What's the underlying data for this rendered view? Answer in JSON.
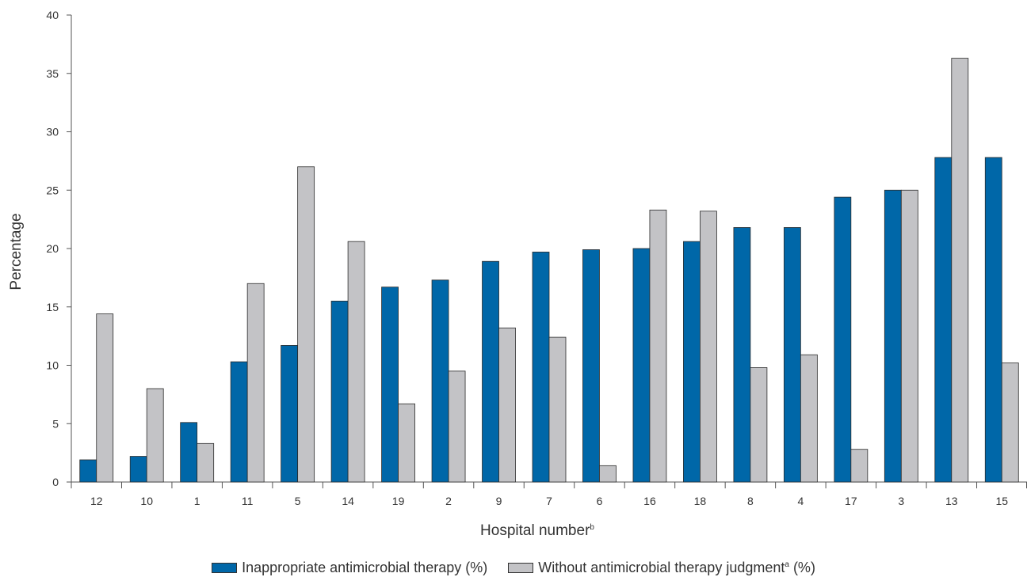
{
  "chart_data": {
    "type": "bar",
    "categories": [
      "12",
      "10",
      "1",
      "11",
      "5",
      "14",
      "19",
      "2",
      "9",
      "7",
      "6",
      "16",
      "18",
      "8",
      "4",
      "17",
      "3",
      "13",
      "15"
    ],
    "series": [
      {
        "name": "Inappropriate antimicrobial therapy (%)",
        "color": "#0067a8",
        "values": [
          1.9,
          2.2,
          5.1,
          10.3,
          11.7,
          15.5,
          16.7,
          17.3,
          18.9,
          19.7,
          19.9,
          20.0,
          20.6,
          21.8,
          21.8,
          24.4,
          25.0,
          27.8,
          27.8
        ]
      },
      {
        "name": "Without antimicrobial therapy judgment",
        "color": "#c3c3c6",
        "values": [
          14.4,
          8.0,
          3.3,
          17.0,
          27.0,
          20.6,
          6.7,
          9.5,
          13.2,
          12.4,
          1.4,
          23.3,
          23.2,
          9.8,
          10.9,
          2.8,
          25.0,
          36.3,
          10.2
        ]
      }
    ],
    "xlabel": "Hospital number",
    "xlabel_sup": "b",
    "ylabel": "Percentage",
    "ylim": [
      0,
      40
    ],
    "yticks": [
      0,
      5,
      10,
      15,
      20,
      25,
      30,
      35,
      40
    ],
    "grid": false,
    "legend_position": "bottom"
  },
  "legend": {
    "item1_label": "Inappropriate antimicrobial therapy (%)",
    "item2_label_pre": "Without antimicrobial therapy judgment",
    "item2_label_sup": "a",
    "item2_label_post": " (%)"
  }
}
